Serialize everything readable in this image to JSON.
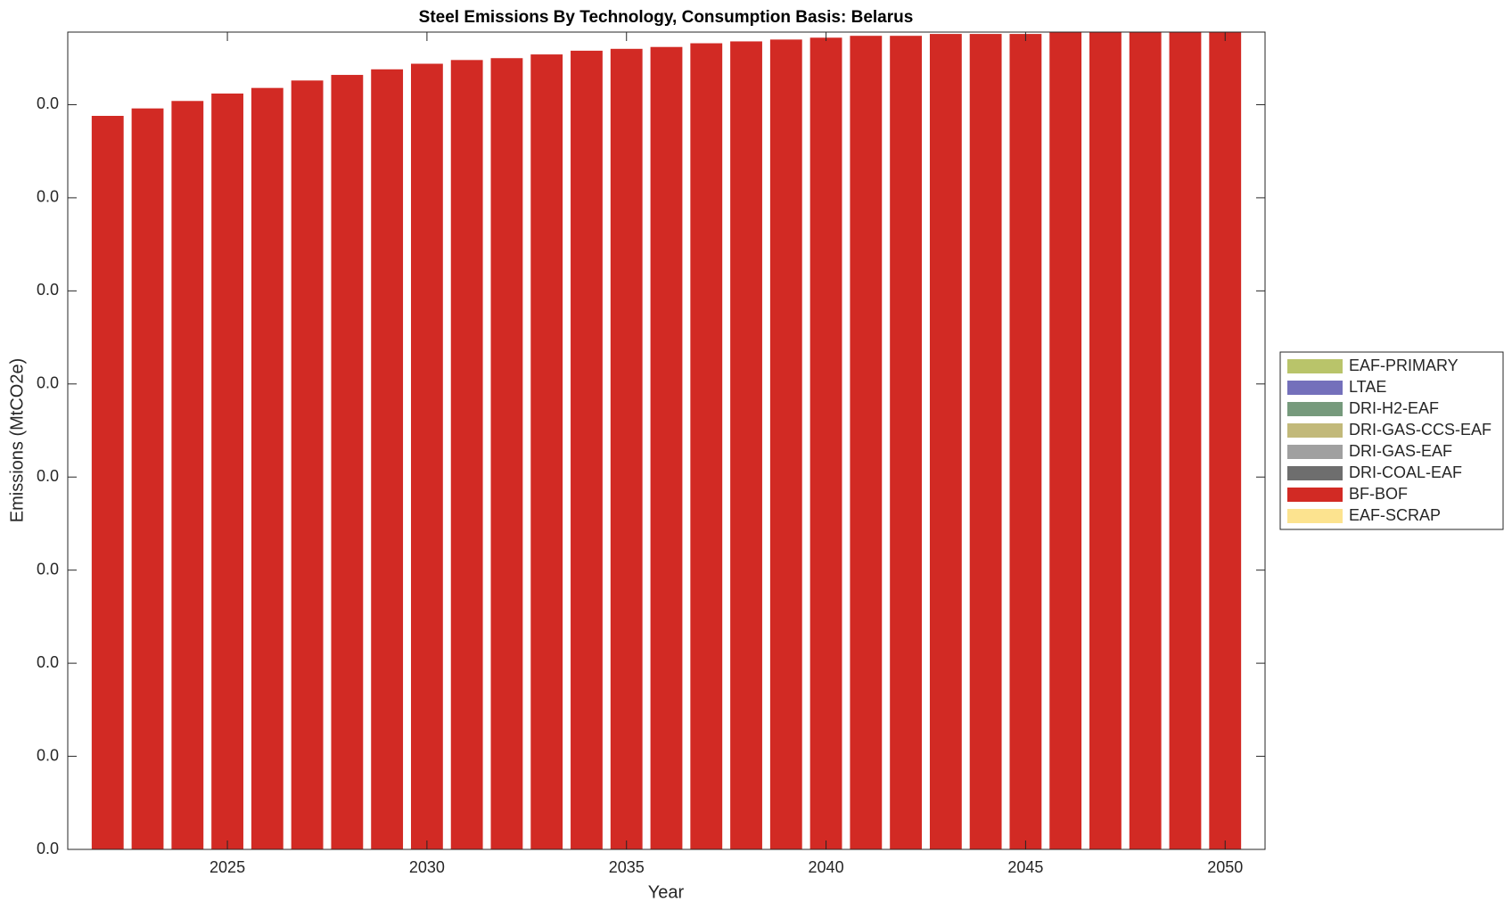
{
  "chart_data": {
    "type": "stacked-bar",
    "title": "Steel Emissions By Technology, Consumption Basis: Belarus",
    "xlabel": "Year",
    "ylabel": "Emissions (MtCO2e)",
    "x": [
      2022,
      2023,
      2024,
      2025,
      2026,
      2027,
      2028,
      2029,
      2030,
      2031,
      2032,
      2033,
      2034,
      2035,
      2036,
      2037,
      2038,
      2039,
      2040,
      2041,
      2042,
      2043,
      2044,
      2045,
      2046,
      2047,
      2048,
      2049,
      2050
    ],
    "xlim": [
      2021,
      2051
    ],
    "xticks": [
      2025,
      2030,
      2035,
      2040,
      2045,
      2050
    ],
    "ylim": [
      0,
      0.0439
    ],
    "yticks": [
      {
        "value": 0,
        "label": "0.0"
      },
      {
        "value": 0.005,
        "label": "0.0"
      },
      {
        "value": 0.01,
        "label": "0.0"
      },
      {
        "value": 0.015,
        "label": "0.0"
      },
      {
        "value": 0.02,
        "label": "0.0"
      },
      {
        "value": 0.025,
        "label": "0.0"
      },
      {
        "value": 0.03,
        "label": "0.0"
      },
      {
        "value": 0.035,
        "label": "0.0"
      },
      {
        "value": 0.04,
        "label": "0.0"
      }
    ],
    "legend": "outside-right",
    "series": [
      {
        "name": "EAF-PRIMARY",
        "color": "#b9c46a",
        "values": [
          0,
          0,
          0,
          0,
          0,
          0,
          0,
          0,
          0,
          0,
          0,
          0,
          0,
          0,
          0,
          0,
          0,
          0,
          0,
          0,
          0,
          0,
          0,
          0,
          0,
          0,
          0,
          0,
          0
        ]
      },
      {
        "name": "LTAE",
        "color": "#7470bb",
        "values": [
          0,
          0,
          0,
          0,
          0,
          0,
          0,
          0,
          0,
          0,
          0,
          0,
          0,
          0,
          0,
          0,
          0,
          0,
          0,
          0,
          0,
          0,
          0,
          0,
          0,
          0,
          0,
          0,
          0
        ]
      },
      {
        "name": "DRI-H2-EAF",
        "color": "#769a7c",
        "values": [
          0,
          0,
          0,
          0,
          0,
          0,
          0,
          0,
          0,
          0,
          0,
          0,
          0,
          0,
          0,
          0,
          0,
          0,
          0,
          0,
          0,
          0,
          0,
          0,
          0,
          0,
          0,
          0,
          0
        ]
      },
      {
        "name": "DRI-GAS-CCS-EAF",
        "color": "#c2b97a",
        "values": [
          0,
          0,
          0,
          0,
          0,
          0,
          0,
          0,
          0,
          0,
          0,
          0,
          0,
          0,
          0,
          0,
          0,
          0,
          0,
          0,
          0,
          0,
          0,
          0,
          0,
          0,
          0,
          0,
          0
        ]
      },
      {
        "name": "DRI-GAS-EAF",
        "color": "#a0a0a0",
        "values": [
          0,
          0,
          0,
          0,
          0,
          0,
          0,
          0,
          0,
          0,
          0,
          0,
          0,
          0,
          0,
          0,
          0,
          0,
          0,
          0,
          0,
          0,
          0,
          0,
          0,
          0,
          0,
          0,
          0
        ]
      },
      {
        "name": "DRI-COAL-EAF",
        "color": "#6e6e6e",
        "values": [
          0,
          0,
          0,
          0,
          0,
          0,
          0,
          0,
          0,
          0,
          0,
          0,
          0,
          0,
          0,
          0,
          0,
          0,
          0,
          0,
          0,
          0,
          0,
          0,
          0,
          0,
          0,
          0,
          0
        ]
      },
      {
        "name": "BF-BOF",
        "color": "#d22a24",
        "values": [
          0.0394,
          0.0398,
          0.0402,
          0.0406,
          0.0409,
          0.0413,
          0.0416,
          0.0419,
          0.0422,
          0.0424,
          0.0425,
          0.0427,
          0.0429,
          0.043,
          0.0431,
          0.0433,
          0.0434,
          0.0435,
          0.0436,
          0.0437,
          0.0437,
          0.0438,
          0.0438,
          0.0438,
          0.0439,
          0.0439,
          0.0439,
          0.0439,
          0.0439
        ]
      },
      {
        "name": "EAF-SCRAP",
        "color": "#fce38f",
        "values": [
          0,
          0,
          0,
          0,
          0,
          0,
          0,
          0,
          0,
          0,
          0,
          0,
          0,
          0,
          0,
          0,
          0,
          0,
          0,
          0,
          0,
          0,
          0,
          0,
          0,
          0,
          0,
          0,
          0
        ]
      }
    ]
  }
}
